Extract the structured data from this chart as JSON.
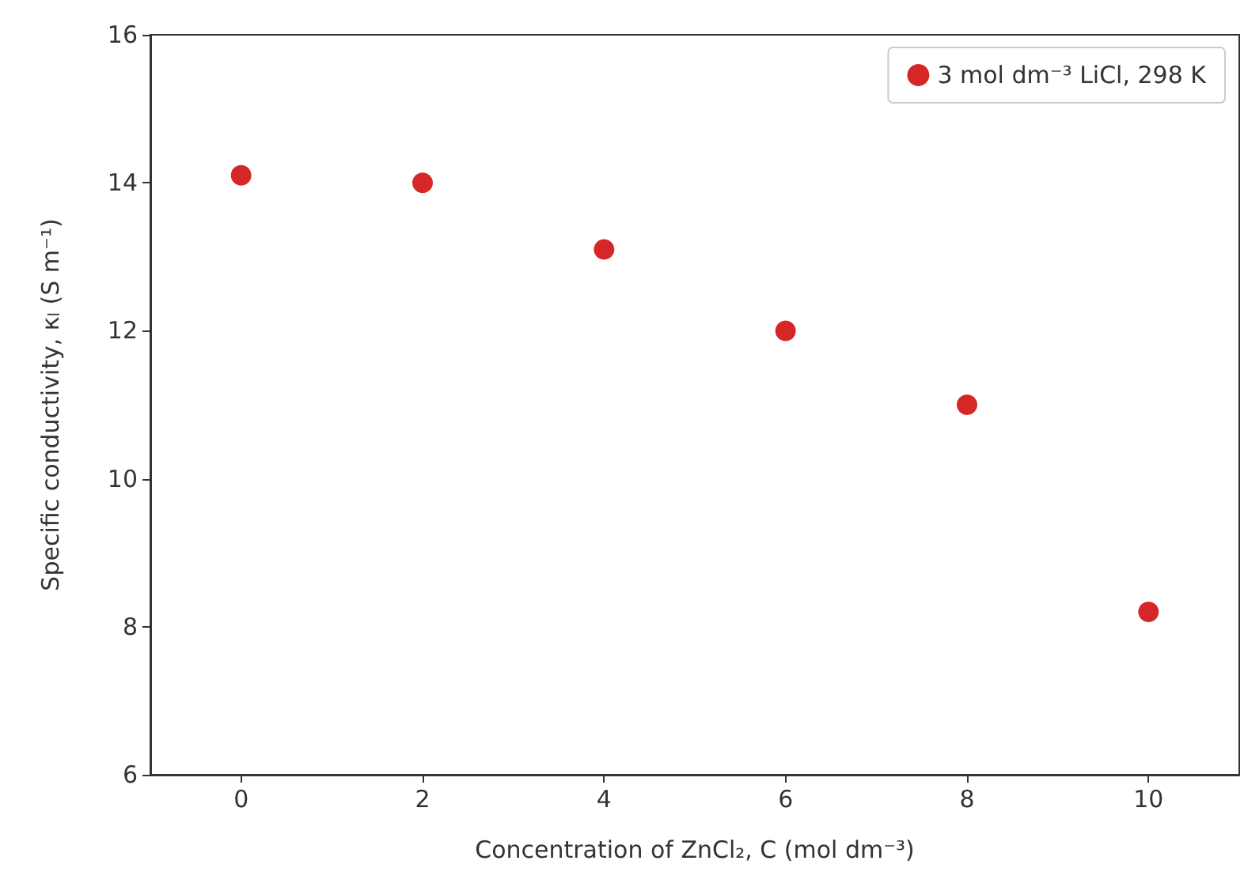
{
  "chart_data": {
    "type": "scatter",
    "xlabel": "Concentration of ZnCl₂, C (mol dm⁻³)",
    "ylabel": "Specific conductivity, κ$_{l}$ (S m⁻¹)",
    "x": [
      0,
      2,
      4,
      6,
      8,
      10
    ],
    "series": [
      {
        "name": "3 mol dm⁻³ LiCl, 298 K",
        "color": "#d62728",
        "values": [
          14.1,
          14.0,
          13.1,
          12.0,
          11.0,
          8.2
        ]
      }
    ],
    "xlim": [
      -1,
      11
    ],
    "xticks": [
      0,
      2,
      4,
      6,
      8,
      10
    ],
    "ylim": [
      6,
      16
    ],
    "yticks": [
      6,
      8,
      10,
      12,
      14,
      16
    ],
    "grid": false,
    "legend": "top right",
    "marker": "circle"
  }
}
